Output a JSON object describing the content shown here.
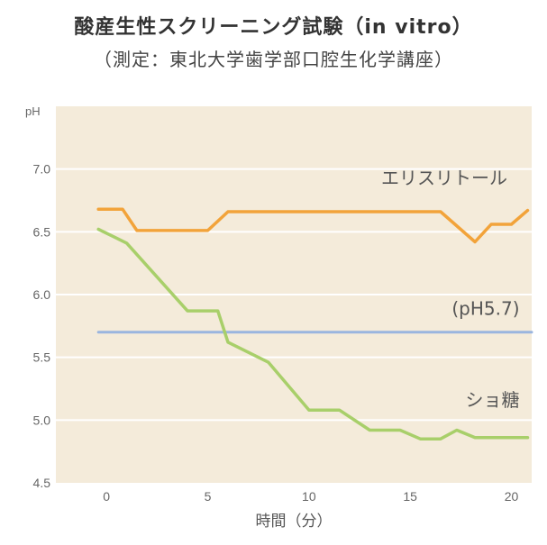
{
  "chart_data": {
    "type": "line",
    "title": "酸産生性スクリーニング試験（in vitro）",
    "subtitle": "（測定：東北大学歯学部口腔生化学講座）",
    "xlabel": "時間（分）",
    "ylabel": "pH",
    "xlim": [
      -2.5,
      21
    ],
    "ylim": [
      4.5,
      7.5
    ],
    "xticks": [
      0,
      5,
      10,
      15,
      20
    ],
    "xtick_labels": [
      "0",
      "5",
      "10",
      "15",
      "20"
    ],
    "yticks": [
      4.5,
      5.0,
      5.5,
      6.0,
      6.5,
      7.0
    ],
    "ytick_labels": [
      "4.5",
      "5.0",
      "5.5",
      "6.0",
      "6.5",
      "7.0"
    ],
    "grid": true,
    "series": [
      {
        "name": "エリスリトール",
        "color": "#f2a33a",
        "x": [
          -0.4,
          0.8,
          1.5,
          5.0,
          6.0,
          16.5,
          18.2,
          19.0,
          20.0,
          20.8
        ],
        "y": [
          6.68,
          6.68,
          6.51,
          6.51,
          6.66,
          6.66,
          6.42,
          6.56,
          6.56,
          6.67
        ]
      },
      {
        "name": "(pH5.7)",
        "color": "#9ab5df",
        "x": [
          -0.4,
          21.0
        ],
        "y": [
          5.7,
          5.7
        ]
      },
      {
        "name": "ショ糖",
        "color": "#a8cf6a",
        "x": [
          -0.4,
          1.0,
          4.0,
          5.5,
          6.0,
          8.0,
          10.0,
          11.5,
          13.0,
          14.5,
          15.5,
          16.5,
          17.3,
          18.2,
          20.8
        ],
        "y": [
          6.52,
          6.41,
          5.87,
          5.87,
          5.62,
          5.46,
          5.08,
          5.08,
          4.92,
          4.92,
          4.85,
          4.85,
          4.92,
          4.86,
          4.86
        ]
      }
    ]
  }
}
